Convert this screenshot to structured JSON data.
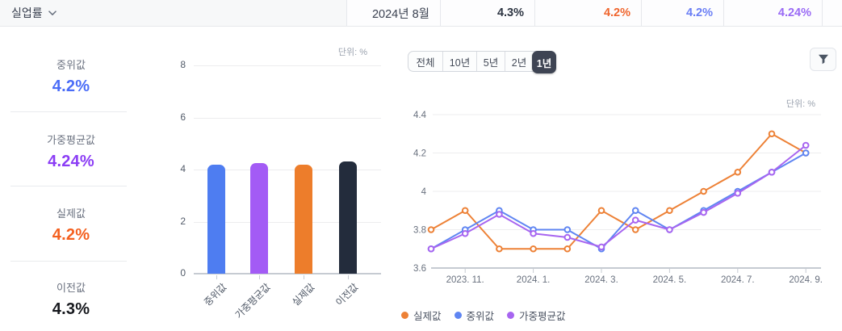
{
  "header": {
    "title": "실업률",
    "cells": [
      {
        "name": "period",
        "text": "2024년 8월",
        "color": "#3a4150",
        "bold": false
      },
      {
        "name": "previous-value",
        "text": "4.3%",
        "color": "#2d3542",
        "bold": true
      },
      {
        "name": "actual-value",
        "text": "4.2%",
        "color": "#f0662e",
        "bold": true
      },
      {
        "name": "median-value",
        "text": "4.2%",
        "color": "#6b7ff5",
        "bold": true
      },
      {
        "name": "weighted-average-value",
        "text": "4.24%",
        "color": "#9a6bf5",
        "bold": true
      }
    ]
  },
  "sidebar": {
    "stats": [
      {
        "key": "median",
        "label": "중위값",
        "value": "4.2%",
        "color": "#4a6cf7"
      },
      {
        "key": "weighted-average",
        "label": "가중평균값",
        "value": "4.24%",
        "color": "#8b3df5"
      },
      {
        "key": "actual",
        "label": "실제값",
        "value": "4.2%",
        "color": "#f4601f"
      },
      {
        "key": "previous",
        "label": "이전값",
        "value": "4.3%",
        "color": "#16181d"
      }
    ]
  },
  "filters": {
    "options": [
      "전체",
      "10년",
      "5년",
      "2년",
      "1년"
    ],
    "selected": "1년"
  },
  "chart_data": [
    {
      "type": "bar",
      "unit_label": "단위: %",
      "categories": [
        "중위값",
        "가중평균값",
        "실제값",
        "이전값"
      ],
      "category_keys": [
        "median",
        "weighted-average",
        "actual",
        "previous"
      ],
      "values": [
        4.2,
        4.24,
        4.2,
        4.3
      ],
      "colors": [
        "#4E7DF1",
        "#A35BF5",
        "#ED7D2B",
        "#232C3C"
      ],
      "ylim": [
        0,
        8
      ],
      "yticks": [
        0,
        2,
        4,
        6,
        8
      ],
      "grid": true
    },
    {
      "type": "line",
      "unit_label": "단위: %",
      "x": [
        "2023.10",
        "2023.11",
        "2023.12",
        "2024.1",
        "2024.2",
        "2024.3",
        "2024.4",
        "2024.5",
        "2024.6",
        "2024.7",
        "2024.8",
        "2024.9"
      ],
      "xtick_indices": [
        1,
        3,
        5,
        7,
        9,
        11
      ],
      "xtick_labels": [
        "2023. 11.",
        "2024. 1.",
        "2024. 3.",
        "2024. 5.",
        "2024. 7.",
        "2024. 9."
      ],
      "ylim": [
        3.6,
        4.4
      ],
      "yticks": [
        3.6,
        3.8,
        4,
        4.2,
        4.4
      ],
      "grid": true,
      "legend_position": "bottom",
      "series": [
        {
          "name": "실제값",
          "key": "actual",
          "color": "#ED8136",
          "values": [
            3.8,
            3.9,
            3.7,
            3.7,
            3.7,
            3.9,
            3.8,
            3.9,
            4.0,
            4.1,
            4.3,
            4.2
          ]
        },
        {
          "name": "중위값",
          "key": "median",
          "color": "#5F85F2",
          "values": [
            3.7,
            3.8,
            3.9,
            3.8,
            3.8,
            3.7,
            3.9,
            3.8,
            3.9,
            4.0,
            4.1,
            4.2
          ]
        },
        {
          "name": "가중평균값",
          "key": "weighted-average",
          "color": "#A765F0",
          "values": [
            3.7,
            3.78,
            3.88,
            3.78,
            3.76,
            3.71,
            3.85,
            3.8,
            3.89,
            3.99,
            4.1,
            4.24
          ]
        }
      ]
    }
  ]
}
